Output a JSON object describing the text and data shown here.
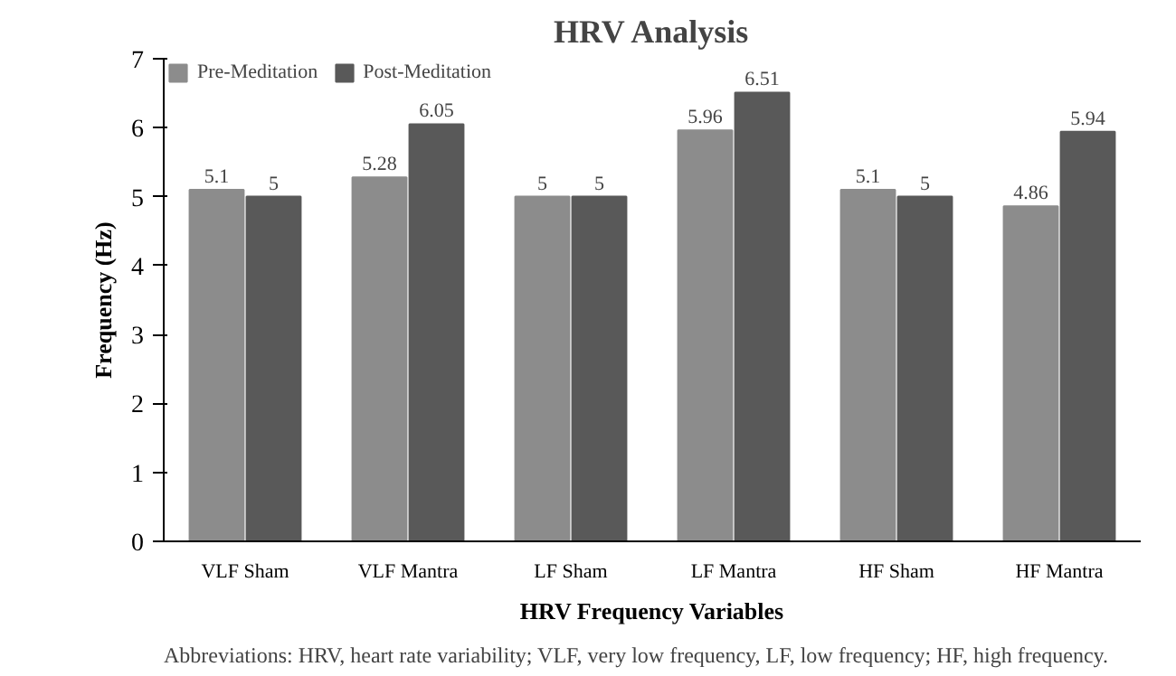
{
  "chart_data": {
    "type": "bar",
    "title": "HRV Analysis",
    "xlabel": "HRV Frequency Variables",
    "ylabel": "Frequency (Hz)",
    "categories": [
      "VLF Sham",
      "VLF Mantra",
      "LF Sham",
      "LF Mantra",
      "HF Sham",
      "HF Mantra"
    ],
    "series": [
      {
        "name": "Pre-Meditation",
        "color": "#8c8c8c",
        "values": [
          5.1,
          5.28,
          5,
          5.96,
          5.1,
          4.86
        ]
      },
      {
        "name": "Post-Meditation",
        "color": "#595959",
        "values": [
          5,
          6.05,
          5,
          6.51,
          5,
          5.94
        ]
      }
    ],
    "ylim": [
      0,
      7
    ],
    "yticks": [
      0,
      1,
      2,
      3,
      4,
      5,
      6,
      7
    ],
    "grid": false,
    "legend": "top left",
    "data_labels": true,
    "annotations": [
      "Abbreviations: HRV, heart rate variability; VLF, very low frequency, LF, low frequency; HF, high frequency."
    ]
  }
}
